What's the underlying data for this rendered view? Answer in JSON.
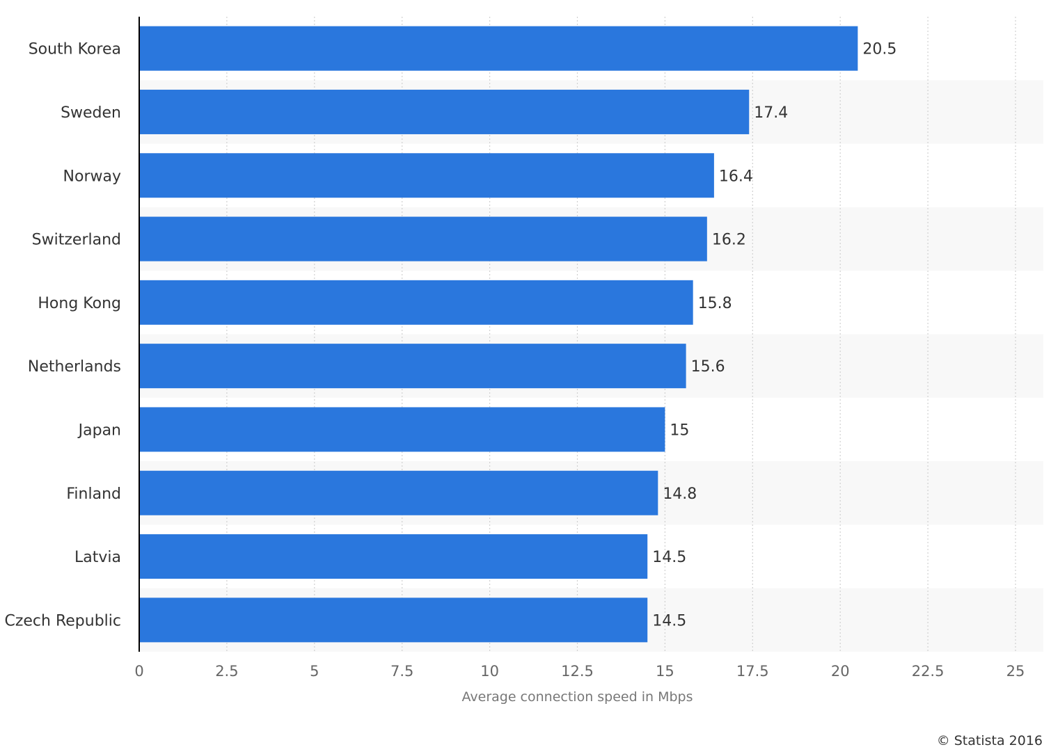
{
  "chart_data": {
    "type": "bar",
    "orientation": "horizontal",
    "categories": [
      "South Korea",
      "Sweden",
      "Norway",
      "Switzerland",
      "Hong Kong",
      "Netherlands",
      "Japan",
      "Finland",
      "Latvia",
      "Czech Republic"
    ],
    "values": [
      20.5,
      17.4,
      16.4,
      16.2,
      15.8,
      15.6,
      15,
      14.8,
      14.5,
      14.5
    ],
    "value_labels": [
      "20.5",
      "17.4",
      "16.4",
      "16.2",
      "15.8",
      "15.6",
      "15",
      "14.8",
      "14.5",
      "14.5"
    ],
    "xlabel": "Average connection speed in Mbps",
    "ylabel": "",
    "xlim": [
      0,
      25
    ],
    "xticks": [
      0,
      2.5,
      5,
      7.5,
      10,
      12.5,
      15,
      17.5,
      20,
      22.5,
      25
    ],
    "xtick_labels": [
      "0",
      "2.5",
      "5",
      "7.5",
      "10",
      "12.5",
      "15",
      "17.5",
      "20",
      "22.5",
      "25"
    ],
    "grid": true,
    "bar_color": "#2a77dd",
    "band_color": "#f8f8f8",
    "grid_color": "#d0d0d0"
  },
  "credit": "© Statista 2016"
}
